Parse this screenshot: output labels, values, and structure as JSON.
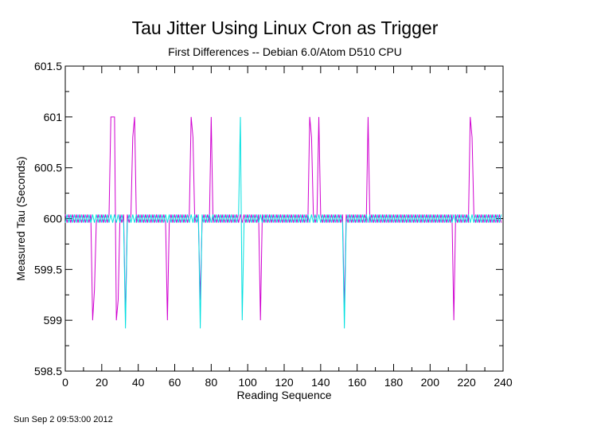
{
  "chart_data": {
    "type": "line",
    "title": "Tau Jitter Using Linux Cron as Trigger",
    "subtitle": "First Differences -- Debian 6.0/Atom D510 CPU",
    "xlabel": "Reading Sequence",
    "ylabel": "Measured Tau (Seconds)",
    "xlim": [
      0,
      240
    ],
    "ylim": [
      598.5,
      601.5
    ],
    "x_ticks": [
      "0",
      "20",
      "40",
      "60",
      "80",
      "100",
      "120",
      "140",
      "160",
      "180",
      "200",
      "220",
      "240"
    ],
    "y_ticks": [
      "598.5",
      "599",
      "599.5",
      "600",
      "600.5",
      "601",
      "601.5"
    ],
    "grid": false,
    "legend": "none",
    "series": [
      {
        "color": "#d000d0",
        "baseline": 600,
        "jitter": 0.04,
        "n_points": 240,
        "spikes": [
          [
            25,
            601
          ],
          [
            26,
            601
          ],
          [
            27,
            601
          ],
          [
            29,
            599.2
          ],
          [
            37,
            600.8
          ],
          [
            38,
            601
          ],
          [
            69,
            601
          ],
          [
            70,
            600.8
          ],
          [
            80,
            601
          ],
          [
            134,
            601
          ],
          [
            135,
            600.8
          ],
          [
            139,
            601
          ],
          [
            166,
            601
          ],
          [
            222,
            601
          ],
          [
            223,
            600.8
          ]
        ],
        "dips": [
          [
            15,
            599
          ],
          [
            16,
            599.3
          ],
          [
            28,
            599
          ],
          [
            33,
            599
          ],
          [
            56,
            599
          ],
          [
            74,
            599.2
          ],
          [
            107,
            599
          ],
          [
            153,
            599.1
          ],
          [
            213,
            599
          ]
        ]
      },
      {
        "color": "#00e0e0",
        "baseline": 600,
        "jitter": 0.04,
        "n_points": 240,
        "spikes": [
          [
            96,
            601
          ]
        ],
        "dips": [
          [
            33,
            598.92
          ],
          [
            74,
            598.92
          ],
          [
            97,
            599
          ],
          [
            153,
            598.92
          ]
        ]
      }
    ]
  },
  "footer": {
    "timestamp": "Sun Sep  2 09:53:00 2012"
  }
}
